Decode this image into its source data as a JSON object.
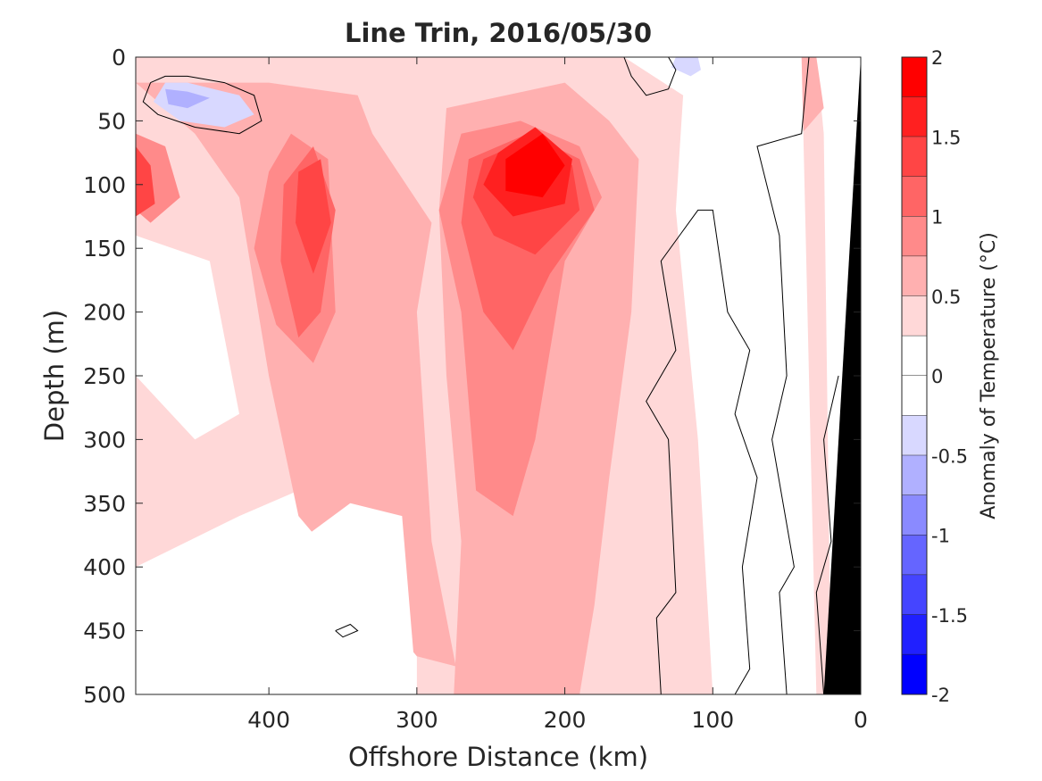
{
  "chart_data": {
    "type": "heatmap",
    "title": "Line Trin, 2016/05/30",
    "xlabel": "Offshore Distance (km)",
    "ylabel": "Depth (m)",
    "colorbar_label": "Anomaly of Temperature (°C)",
    "xlim": [
      490,
      0
    ],
    "ylim": [
      0,
      500
    ],
    "x_ticks": [
      400,
      300,
      200,
      100,
      0
    ],
    "y_ticks": [
      0,
      50,
      100,
      150,
      200,
      250,
      300,
      350,
      400,
      450,
      500
    ],
    "colorbar_ticks": [
      2,
      1.5,
      1,
      0.5,
      0,
      -0.5,
      -1,
      -1.5,
      -2
    ],
    "colorbar_levels": [
      {
        "min": 1.75,
        "max": 2.0,
        "color": "#ff0000"
      },
      {
        "min": 1.5,
        "max": 1.75,
        "color": "#ff2020"
      },
      {
        "min": 1.25,
        "max": 1.5,
        "color": "#ff4545"
      },
      {
        "min": 1.0,
        "max": 1.25,
        "color": "#ff6565"
      },
      {
        "min": 0.75,
        "max": 1.0,
        "color": "#ff8a8a"
      },
      {
        "min": 0.5,
        "max": 0.75,
        "color": "#ffb0b0"
      },
      {
        "min": 0.25,
        "max": 0.5,
        "color": "#ffd8d8"
      },
      {
        "min": 0.0,
        "max": 0.25,
        "color": "#ffffff"
      },
      {
        "min": -0.25,
        "max": 0.0,
        "color": "#ffffff"
      },
      {
        "min": -0.5,
        "max": -0.25,
        "color": "#d8d8ff"
      },
      {
        "min": -0.75,
        "max": -0.5,
        "color": "#b0b0ff"
      },
      {
        "min": -1.0,
        "max": -0.75,
        "color": "#8a8aff"
      },
      {
        "min": -1.25,
        "max": -1.0,
        "color": "#6565ff"
      },
      {
        "min": -1.5,
        "max": -1.25,
        "color": "#4545ff"
      },
      {
        "min": -1.75,
        "max": -1.5,
        "color": "#2020ff"
      },
      {
        "min": -2.0,
        "max": -1.75,
        "color": "#0000ff"
      }
    ],
    "regions": [
      {
        "level": 0.375,
        "points": [
          [
            490,
            0
          ],
          [
            30,
            0
          ],
          [
            25,
            60
          ],
          [
            20,
            500
          ],
          [
            300,
            500
          ],
          [
            300,
            360
          ],
          [
            360,
            330
          ],
          [
            420,
            360
          ],
          [
            490,
            400
          ]
        ]
      },
      {
        "level": 0.625,
        "points": [
          [
            490,
            20
          ],
          [
            450,
            60
          ],
          [
            420,
            110
          ],
          [
            400,
            250
          ],
          [
            380,
            360
          ],
          [
            300,
            470
          ],
          [
            200,
            500
          ],
          [
            270,
            500
          ],
          [
            290,
            380
          ],
          [
            300,
            200
          ],
          [
            290,
            130
          ],
          [
            330,
            60
          ],
          [
            340,
            30
          ],
          [
            400,
            20
          ]
        ]
      },
      {
        "level": 0.625,
        "points": [
          [
            280,
            40
          ],
          [
            200,
            20
          ],
          [
            170,
            50
          ],
          [
            150,
            80
          ],
          [
            155,
            200
          ],
          [
            170,
            330
          ],
          [
            180,
            430
          ],
          [
            190,
            500
          ],
          [
            275,
            500
          ],
          [
            270,
            380
          ],
          [
            280,
            250
          ],
          [
            285,
            120
          ]
        ]
      },
      {
        "level": 0.875,
        "points": [
          [
            400,
            90
          ],
          [
            385,
            60
          ],
          [
            360,
            80
          ],
          [
            355,
            200
          ],
          [
            370,
            240
          ],
          [
            395,
            210
          ],
          [
            410,
            150
          ]
        ]
      },
      {
        "level": 0.875,
        "points": [
          [
            270,
            60
          ],
          [
            230,
            50
          ],
          [
            190,
            70
          ],
          [
            175,
            110
          ],
          [
            200,
            160
          ],
          [
            220,
            300
          ],
          [
            235,
            360
          ],
          [
            260,
            340
          ],
          [
            270,
            200
          ],
          [
            285,
            120
          ]
        ]
      },
      {
        "level": 1.125,
        "points": [
          [
            390,
            100
          ],
          [
            370,
            70
          ],
          [
            355,
            120
          ],
          [
            365,
            200
          ],
          [
            380,
            220
          ],
          [
            392,
            160
          ]
        ]
      },
      {
        "level": 1.125,
        "points": [
          [
            265,
            80
          ],
          [
            225,
            60
          ],
          [
            190,
            80
          ],
          [
            180,
            120
          ],
          [
            210,
            170
          ],
          [
            235,
            230
          ],
          [
            255,
            200
          ],
          [
            270,
            130
          ]
        ]
      },
      {
        "level": 1.375,
        "points": [
          [
            380,
            90
          ],
          [
            365,
            80
          ],
          [
            358,
            130
          ],
          [
            370,
            170
          ],
          [
            382,
            130
          ]
        ]
      },
      {
        "level": 1.375,
        "points": [
          [
            255,
            80
          ],
          [
            225,
            65
          ],
          [
            195,
            85
          ],
          [
            190,
            120
          ],
          [
            220,
            155
          ],
          [
            248,
            140
          ],
          [
            262,
            110
          ]
        ]
      },
      {
        "level": 1.625,
        "points": [
          [
            245,
            75
          ],
          [
            220,
            55
          ],
          [
            195,
            80
          ],
          [
            200,
            115
          ],
          [
            235,
            125
          ],
          [
            255,
            100
          ]
        ]
      },
      {
        "level": 1.875,
        "points": [
          [
            240,
            80
          ],
          [
            215,
            60
          ],
          [
            200,
            85
          ],
          [
            215,
            110
          ],
          [
            240,
            105
          ]
        ]
      },
      {
        "level": 0.875,
        "points": [
          [
            490,
            60
          ],
          [
            470,
            70
          ],
          [
            460,
            110
          ],
          [
            480,
            130
          ],
          [
            490,
            120
          ]
        ]
      },
      {
        "level": 1.375,
        "points": [
          [
            490,
            70
          ],
          [
            480,
            85
          ],
          [
            477,
            115
          ],
          [
            490,
            125
          ]
        ]
      },
      {
        "level": 0.625,
        "points": [
          [
            60,
            10
          ],
          [
            45,
            0
          ],
          [
            30,
            0
          ],
          [
            25,
            40
          ],
          [
            40,
            60
          ],
          [
            55,
            40
          ]
        ]
      },
      {
        "level": 0.125,
        "points": [
          [
            490,
            250
          ],
          [
            450,
            300
          ],
          [
            420,
            280
          ],
          [
            440,
            160
          ],
          [
            490,
            140
          ]
        ]
      },
      {
        "level": 0.125,
        "points": [
          [
            345,
            350
          ],
          [
            310,
            360
          ],
          [
            300,
            500
          ],
          [
            380,
            500
          ],
          [
            380,
            380
          ]
        ]
      },
      {
        "level": 0.125,
        "points": [
          [
            160,
            0
          ],
          [
            120,
            30
          ],
          [
            125,
            120
          ],
          [
            110,
            300
          ],
          [
            100,
            500
          ],
          [
            30,
            500
          ],
          [
            40,
            0
          ]
        ]
      },
      {
        "level": -0.375,
        "points": [
          [
            470,
            20
          ],
          [
            455,
            20
          ],
          [
            420,
            30
          ],
          [
            410,
            45
          ],
          [
            430,
            55
          ],
          [
            460,
            50
          ],
          [
            478,
            35
          ]
        ]
      },
      {
        "level": -0.625,
        "points": [
          [
            470,
            25
          ],
          [
            455,
            27
          ],
          [
            440,
            32
          ],
          [
            455,
            40
          ],
          [
            468,
            37
          ]
        ]
      },
      {
        "level": -0.375,
        "points": [
          [
            125,
            0
          ],
          [
            110,
            0
          ],
          [
            108,
            10
          ],
          [
            115,
            15
          ],
          [
            128,
            8
          ]
        ]
      }
    ],
    "contours_zero": [
      [
        [
          480,
          20
        ],
        [
          470,
          15
        ],
        [
          455,
          15
        ],
        [
          430,
          20
        ],
        [
          410,
          30
        ],
        [
          405,
          50
        ],
        [
          420,
          60
        ],
        [
          450,
          55
        ],
        [
          475,
          45
        ],
        [
          485,
          35
        ],
        [
          480,
          20
        ]
      ],
      [
        [
          160,
          0
        ],
        [
          155,
          15
        ],
        [
          145,
          30
        ],
        [
          130,
          25
        ],
        [
          125,
          10
        ],
        [
          130,
          0
        ]
      ],
      [
        [
          135,
          500
        ],
        [
          138,
          440
        ],
        [
          125,
          420
        ],
        [
          130,
          300
        ],
        [
          145,
          270
        ],
        [
          125,
          230
        ],
        [
          135,
          160
        ],
        [
          110,
          120
        ],
        [
          100,
          120
        ],
        [
          90,
          200
        ],
        [
          75,
          230
        ],
        [
          85,
          280
        ],
        [
          70,
          330
        ],
        [
          80,
          400
        ],
        [
          75,
          480
        ],
        [
          85,
          500
        ]
      ],
      [
        [
          50,
          500
        ],
        [
          55,
          420
        ],
        [
          45,
          400
        ],
        [
          60,
          300
        ],
        [
          50,
          250
        ],
        [
          55,
          140
        ],
        [
          70,
          70
        ],
        [
          40,
          60
        ],
        [
          35,
          0
        ]
      ],
      [
        [
          25,
          500
        ],
        [
          30,
          420
        ],
        [
          20,
          380
        ],
        [
          25,
          300
        ],
        [
          15,
          250
        ]
      ],
      [
        [
          355,
          450
        ],
        [
          345,
          445
        ],
        [
          340,
          450
        ],
        [
          350,
          455
        ],
        [
          355,
          450
        ]
      ]
    ],
    "land": [
      [
        0,
        0
      ],
      [
        25,
        500
      ],
      [
        0,
        500
      ]
    ]
  }
}
